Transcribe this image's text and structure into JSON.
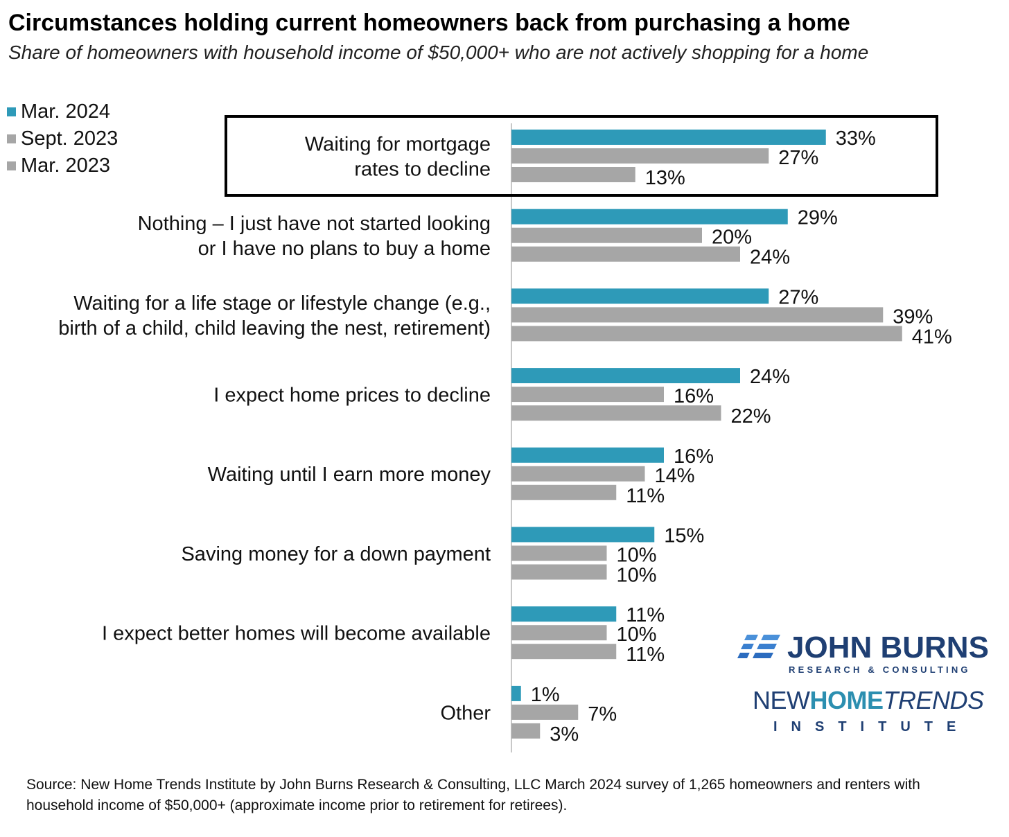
{
  "title": "Circumstances holding current homeowners back from purchasing a home",
  "subtitle": "Share of homeowners with household income of $50,000+ who are not actively shopping for a home",
  "source": "Source: New Home Trends Institute by John Burns Research & Consulting, LLC March 2024 survey of 1,265 homeowners and renters with household income of $50,000+ (approximate income prior to retirement for retirees).",
  "logos": {
    "john_burns_name": "JOHN BURNS",
    "john_burns_tagline": "RESEARCH & CONSULTING",
    "nht_new": "NEW",
    "nht_home": "HOME",
    "nht_trends": "TRENDS",
    "nht_institute": "INSTITUTE"
  },
  "colors": {
    "mar2024": "#2e9ab8",
    "sept2023": "#a6a6a6",
    "mar2023": "#a6a6a6",
    "highlight_box": "#000000",
    "axis": "#c8c8c8"
  },
  "chart_data": {
    "type": "bar",
    "orientation": "horizontal",
    "unit": "%",
    "xlim": [
      0,
      41
    ],
    "grid": false,
    "legend_position": "top-left",
    "highlighted_category_index": 0,
    "categories": [
      [
        "Waiting for mortgage",
        "rates to decline"
      ],
      [
        "Nothing – I just have not started looking",
        "or I have no plans to buy a home"
      ],
      [
        "Waiting for a life stage or lifestyle change (e.g.,",
        "birth of a child, child leaving the nest, retirement)"
      ],
      [
        "I expect home prices to decline"
      ],
      [
        "Waiting until I earn more money"
      ],
      [
        "Saving money for a down payment"
      ],
      [
        "I expect better homes will become available"
      ],
      [
        "Other"
      ]
    ],
    "series": [
      {
        "name": "Mar. 2024",
        "color": "#2e9ab8",
        "values": [
          33,
          29,
          27,
          24,
          16,
          15,
          11,
          1
        ]
      },
      {
        "name": "Sept. 2023",
        "color": "#a6a6a6",
        "values": [
          27,
          20,
          39,
          16,
          14,
          10,
          10,
          7
        ]
      },
      {
        "name": "Mar. 2023",
        "color": "#a6a6a6",
        "values": [
          13,
          24,
          41,
          22,
          11,
          10,
          11,
          3
        ]
      }
    ]
  }
}
